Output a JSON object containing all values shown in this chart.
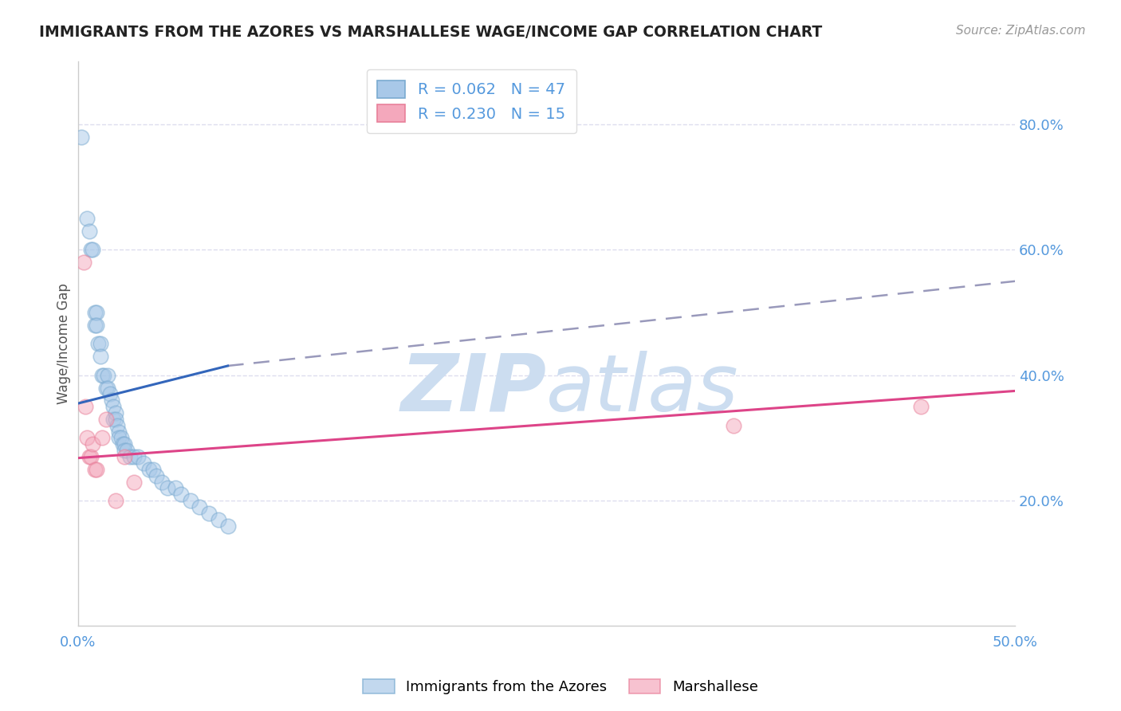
{
  "title": "IMMIGRANTS FROM THE AZORES VS MARSHALLESE WAGE/INCOME GAP CORRELATION CHART",
  "source": "Source: ZipAtlas.com",
  "ylabel": "Wage/Income Gap",
  "xlim": [
    0.0,
    0.5
  ],
  "ylim": [
    0.0,
    0.9
  ],
  "ytick_labels_right": [
    "20.0%",
    "40.0%",
    "60.0%",
    "80.0%"
  ],
  "ytick_values_right": [
    0.2,
    0.4,
    0.6,
    0.8
  ],
  "blue_label": "Immigrants from the Azores",
  "pink_label": "Marshallese",
  "blue_R": "0.062",
  "blue_N": "47",
  "pink_R": "0.230",
  "pink_N": "15",
  "blue_color": "#a8c8e8",
  "pink_color": "#f4a8bc",
  "blue_edge_color": "#7aaad0",
  "pink_edge_color": "#e8809a",
  "blue_line_color": "#3366bb",
  "pink_line_color": "#dd4488",
  "dashed_line_color": "#9999bb",
  "watermark_color": "#ccddf0",
  "background_color": "#ffffff",
  "blue_x": [
    0.002,
    0.005,
    0.006,
    0.007,
    0.008,
    0.009,
    0.009,
    0.01,
    0.01,
    0.011,
    0.012,
    0.012,
    0.013,
    0.014,
    0.015,
    0.016,
    0.016,
    0.017,
    0.018,
    0.019,
    0.019,
    0.02,
    0.02,
    0.021,
    0.022,
    0.022,
    0.023,
    0.024,
    0.025,
    0.025,
    0.026,
    0.028,
    0.03,
    0.032,
    0.035,
    0.038,
    0.04,
    0.042,
    0.045,
    0.048,
    0.052,
    0.055,
    0.06,
    0.065,
    0.07,
    0.075,
    0.08
  ],
  "blue_y": [
    0.78,
    0.65,
    0.63,
    0.6,
    0.6,
    0.5,
    0.48,
    0.5,
    0.48,
    0.45,
    0.45,
    0.43,
    0.4,
    0.4,
    0.38,
    0.4,
    0.38,
    0.37,
    0.36,
    0.35,
    0.33,
    0.34,
    0.33,
    0.32,
    0.31,
    0.3,
    0.3,
    0.29,
    0.29,
    0.28,
    0.28,
    0.27,
    0.27,
    0.27,
    0.26,
    0.25,
    0.25,
    0.24,
    0.23,
    0.22,
    0.22,
    0.21,
    0.2,
    0.19,
    0.18,
    0.17,
    0.16
  ],
  "pink_x": [
    0.003,
    0.004,
    0.005,
    0.006,
    0.007,
    0.008,
    0.009,
    0.01,
    0.013,
    0.015,
    0.02,
    0.025,
    0.03,
    0.35,
    0.45
  ],
  "pink_y": [
    0.58,
    0.35,
    0.3,
    0.27,
    0.27,
    0.29,
    0.25,
    0.25,
    0.3,
    0.33,
    0.2,
    0.27,
    0.23,
    0.32,
    0.35
  ],
  "blue_trend_x": [
    0.0,
    0.08
  ],
  "blue_trend_y": [
    0.355,
    0.415
  ],
  "pink_trend_x": [
    0.0,
    0.5
  ],
  "pink_trend_y": [
    0.268,
    0.375
  ],
  "dashed_trend_x": [
    0.08,
    0.5
  ],
  "dashed_trend_y": [
    0.415,
    0.55
  ],
  "grid_color": "#ddddee",
  "axis_color": "#cccccc",
  "tick_color": "#5599dd",
  "legend_edge_color": "#dddddd"
}
